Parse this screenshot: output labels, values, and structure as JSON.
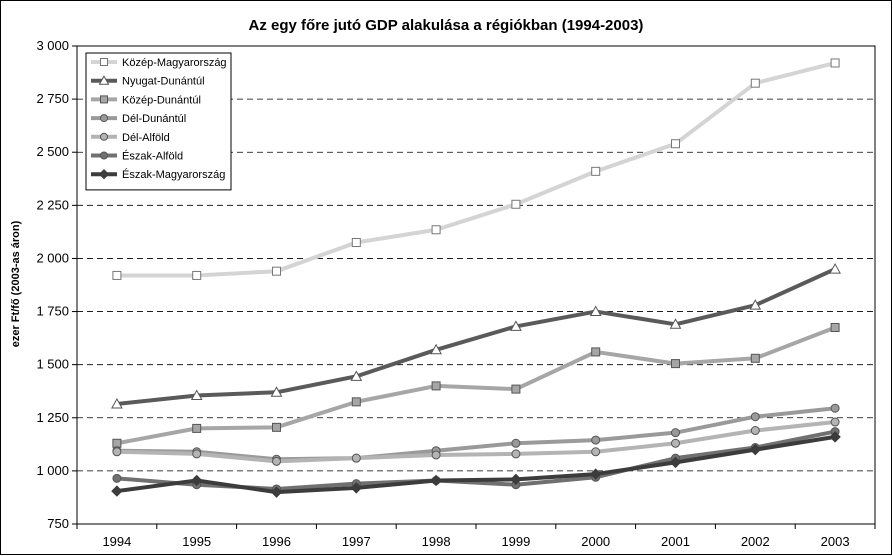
{
  "chart_data": {
    "type": "line",
    "title": "Az egy főre jutó GDP alakulása a régiókban (1994-2003)",
    "xlabel": "",
    "ylabel": "ezer Ft/fő (2003-as áron)",
    "categories": [
      "1994",
      "1995",
      "1996",
      "1997",
      "1998",
      "1999",
      "2000",
      "2001",
      "2002",
      "2003"
    ],
    "ylim": [
      750,
      3000
    ],
    "yticks": [
      750,
      1000,
      1250,
      1500,
      1750,
      2000,
      2250,
      2500,
      2750,
      3000
    ],
    "ytick_labels": [
      "750",
      "1 000",
      "1 250",
      "1 500",
      "1 750",
      "2 000",
      "2 250",
      "2 500",
      "2 750",
      "3 000"
    ],
    "grid": "horizontal dashed",
    "legend_position": "top-left",
    "series": [
      {
        "name": "Közép-Magyarország",
        "color": "#d4d4d4",
        "marker": "square-open",
        "values": [
          1920,
          1920,
          1940,
          2075,
          2135,
          2255,
          2410,
          2540,
          2825,
          2920
        ]
      },
      {
        "name": "Nyugat-Dunántúl",
        "color": "#5a5a5a",
        "marker": "triangle-open",
        "values": [
          1315,
          1355,
          1370,
          1445,
          1570,
          1680,
          1750,
          1690,
          1780,
          1950
        ]
      },
      {
        "name": "Közép-Dunántúl",
        "color": "#a6a6a6",
        "marker": "square-filled",
        "values": [
          1130,
          1200,
          1205,
          1325,
          1400,
          1385,
          1560,
          1505,
          1530,
          1675
        ]
      },
      {
        "name": "Dél-Dunántúl",
        "color": "#9a9a9a",
        "marker": "circle",
        "values": [
          1095,
          1090,
          1055,
          1060,
          1095,
          1130,
          1145,
          1180,
          1255,
          1295
        ]
      },
      {
        "name": "Dél-Alföld",
        "color": "#b4b4b4",
        "marker": "circle",
        "values": [
          1090,
          1080,
          1045,
          1060,
          1075,
          1080,
          1090,
          1130,
          1190,
          1230
        ]
      },
      {
        "name": "Észak-Alföld",
        "color": "#707070",
        "marker": "circle",
        "values": [
          965,
          935,
          915,
          940,
          955,
          935,
          970,
          1060,
          1110,
          1185
        ]
      },
      {
        "name": "Észak-Magyarország",
        "color": "#3c3c3c",
        "marker": "diamond",
        "values": [
          905,
          955,
          900,
          920,
          955,
          960,
          985,
          1040,
          1100,
          1160
        ]
      }
    ]
  }
}
